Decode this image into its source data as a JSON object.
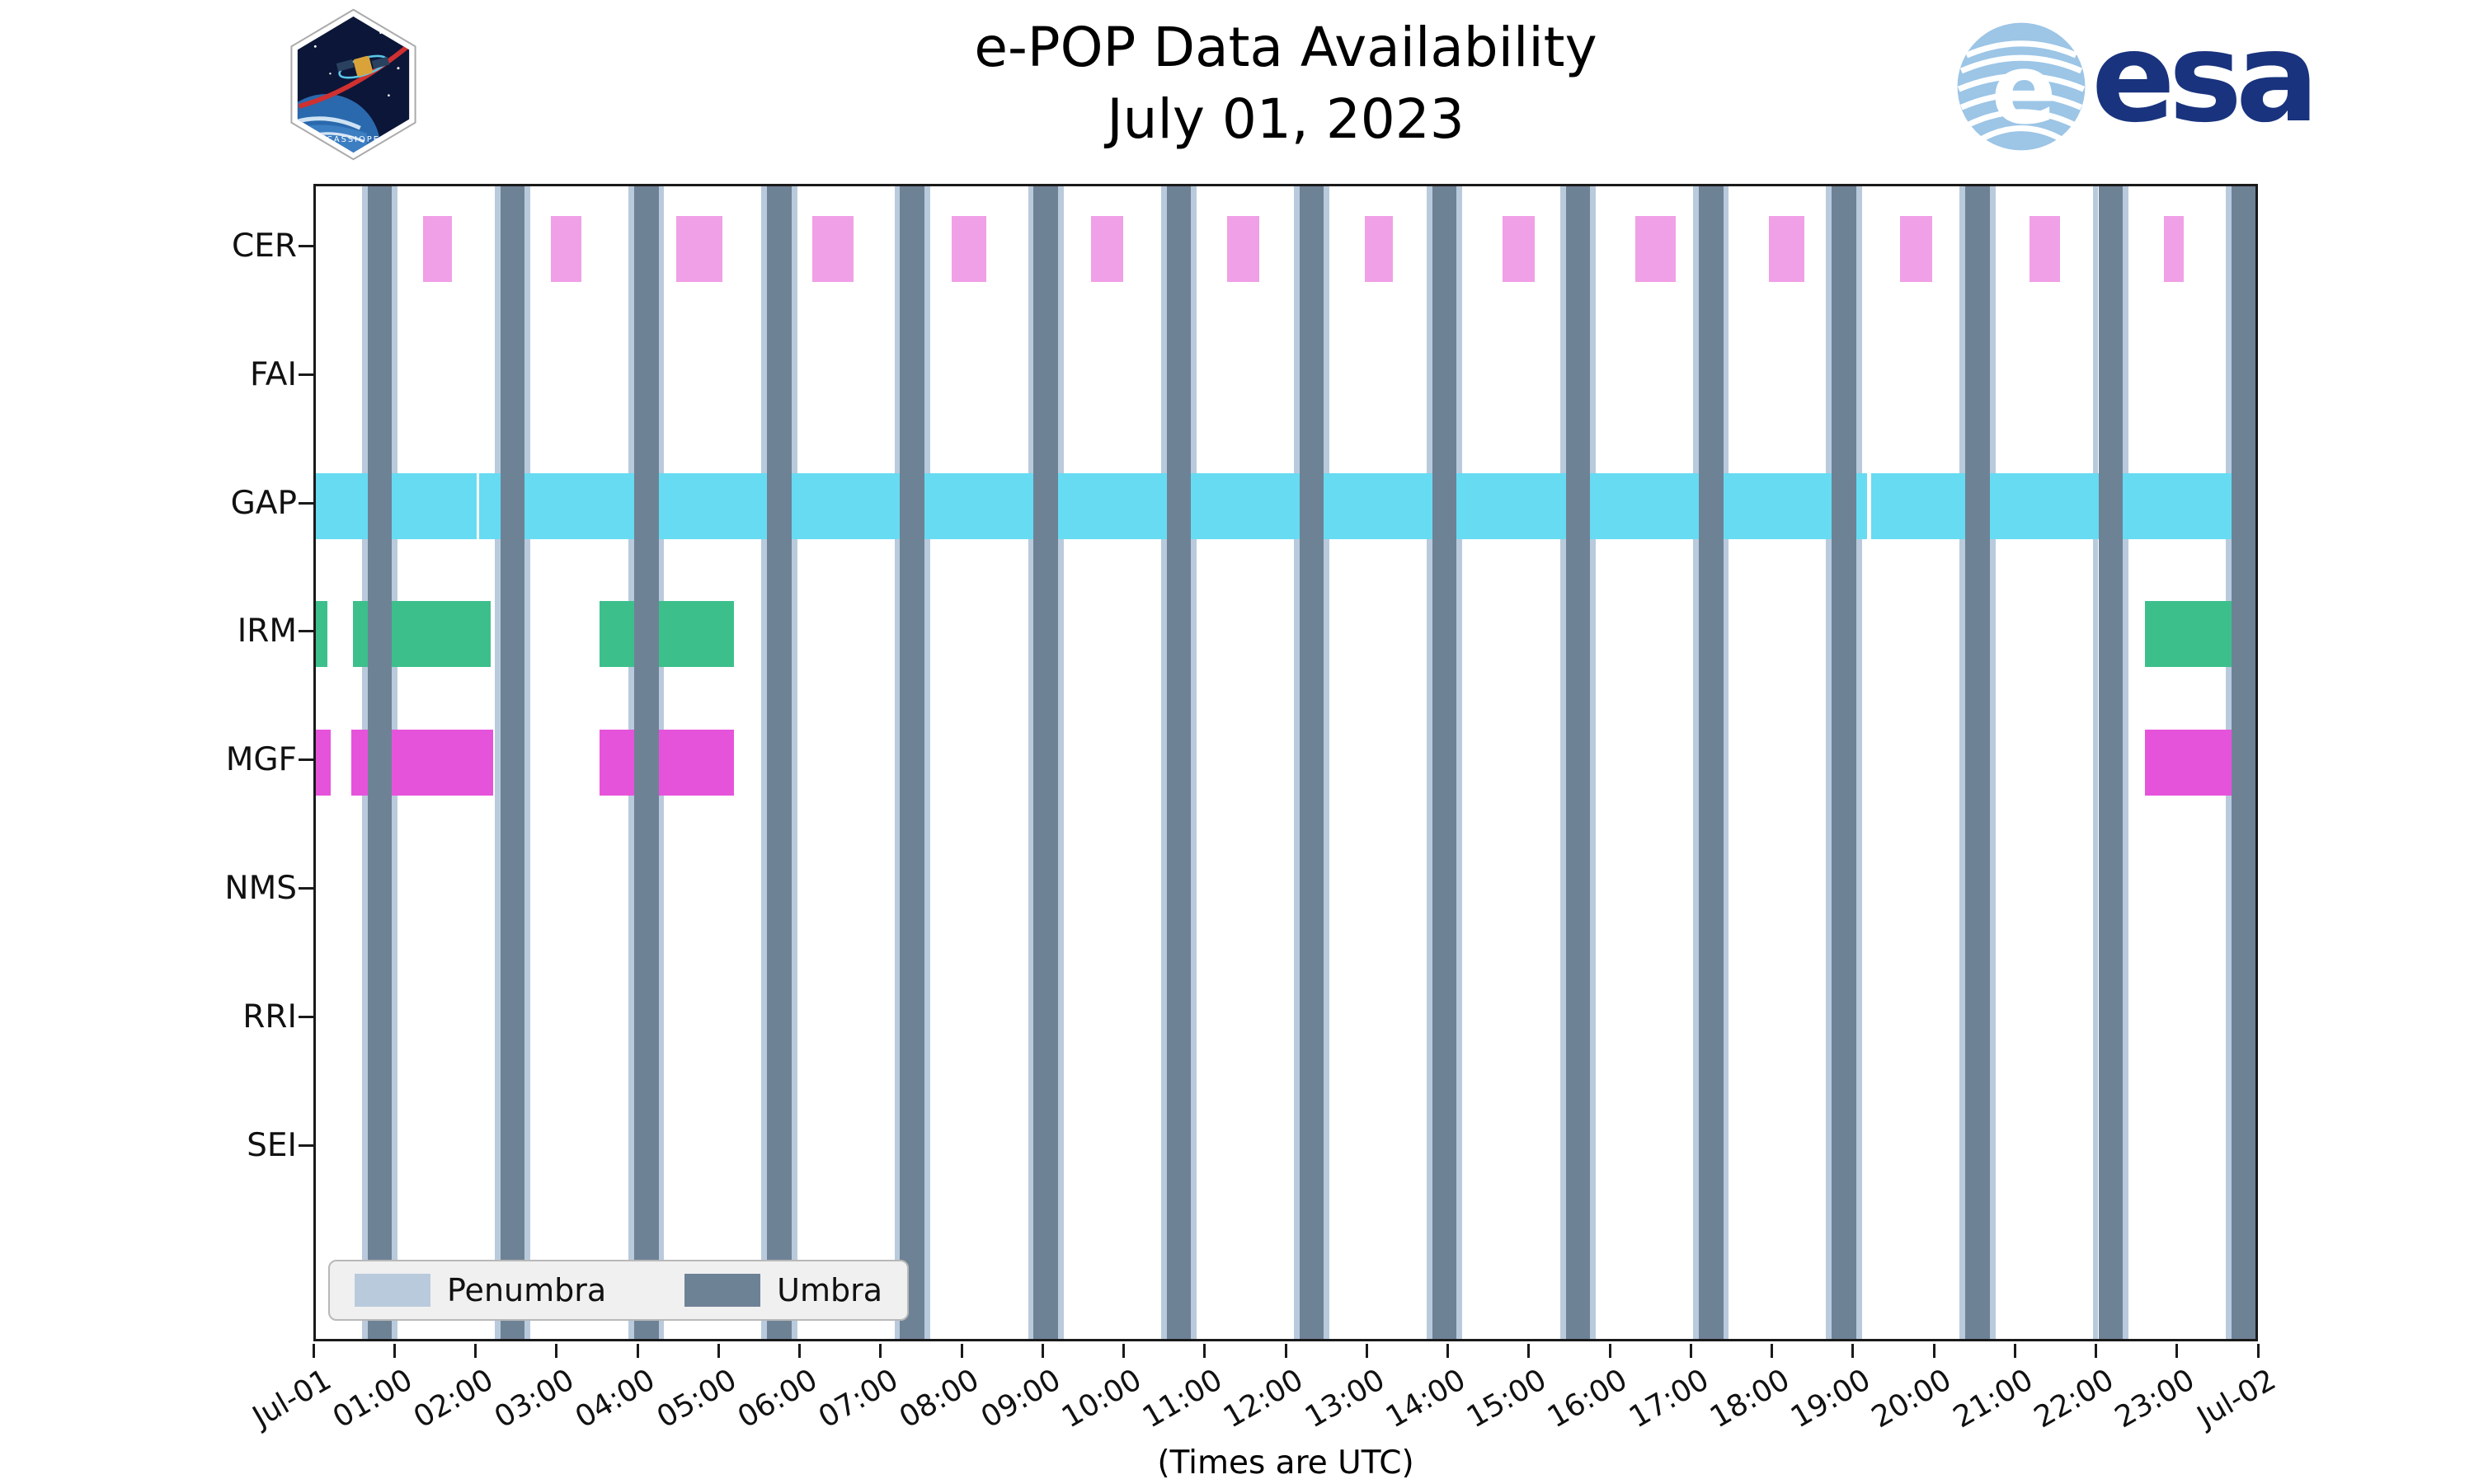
{
  "header": {
    "title": "e-POP Data Availability",
    "subtitle": "July 01, 2023",
    "cassiope_label": "CASSIOPE",
    "esa_label": "esa",
    "esa_globe_letter": "e"
  },
  "axis": {
    "xlabel": "(Times are UTC)"
  },
  "legend": {
    "penumbra_label": "Penumbra",
    "umbra_label": "Umbra"
  },
  "colors": {
    "umbra": "#6E8296",
    "penumbra": "#B9CADC",
    "CER": "#F0A0E6",
    "GAP": "#67DBF2",
    "IRM": "#3DBF8C",
    "MGF": "#E653DB",
    "esa_blue": "#19337E",
    "globe_blue": "#9CC5E6"
  },
  "chart_data": {
    "type": "timeline-gantt",
    "title": "e-POP Data Availability",
    "subtitle": "July 01, 2023",
    "xlabel": "(Times are UTC)",
    "x_range_hours": [
      0,
      24
    ],
    "x_tick_hours": [
      0,
      1,
      2,
      3,
      4,
      5,
      6,
      7,
      8,
      9,
      10,
      11,
      12,
      13,
      14,
      15,
      16,
      17,
      18,
      19,
      20,
      21,
      22,
      23,
      24
    ],
    "x_tick_labels": [
      "Jul-01",
      "01:00",
      "02:00",
      "03:00",
      "04:00",
      "05:00",
      "06:00",
      "07:00",
      "08:00",
      "09:00",
      "10:00",
      "11:00",
      "12:00",
      "13:00",
      "14:00",
      "15:00",
      "16:00",
      "17:00",
      "18:00",
      "19:00",
      "20:00",
      "21:00",
      "22:00",
      "23:00",
      "Jul-02"
    ],
    "rows": [
      "CER",
      "FAI",
      "GAP",
      "IRM",
      "MGF",
      "NMS",
      "RRI",
      "SEI"
    ],
    "umbra_centers_hours": [
      0.79,
      2.43,
      4.08,
      5.72,
      7.36,
      9.01,
      10.65,
      12.29,
      13.93,
      15.58,
      17.22,
      18.86,
      20.51,
      22.15,
      23.79
    ],
    "umbra_width_hours": 0.3,
    "penumbra_extra_hours": 0.07,
    "bars_hours": {
      "CER": [
        [
          1.32,
          1.68
        ],
        [
          2.9,
          3.28
        ],
        [
          4.45,
          5.02
        ],
        [
          6.13,
          6.64
        ],
        [
          7.85,
          8.28
        ],
        [
          9.57,
          9.96
        ],
        [
          11.25,
          11.64
        ],
        [
          12.95,
          13.29
        ],
        [
          14.65,
          15.04
        ],
        [
          16.29,
          16.78
        ],
        [
          17.93,
          18.37
        ],
        [
          19.55,
          19.95
        ],
        [
          21.15,
          21.53
        ],
        [
          22.81,
          23.05
        ]
      ],
      "FAI": [],
      "GAP": [
        [
          0.0,
          1.98
        ],
        [
          2.02,
          19.15
        ],
        [
          19.2,
          24.0
        ]
      ],
      "IRM": [
        [
          0.0,
          0.14
        ],
        [
          0.46,
          2.16
        ],
        [
          3.5,
          5.16
        ],
        [
          22.58,
          23.98
        ]
      ],
      "MGF": [
        [
          0.0,
          0.18
        ],
        [
          0.44,
          2.19
        ],
        [
          3.5,
          5.16
        ],
        [
          22.58,
          24.0
        ]
      ],
      "NMS": [],
      "RRI": [],
      "SEI": []
    }
  }
}
